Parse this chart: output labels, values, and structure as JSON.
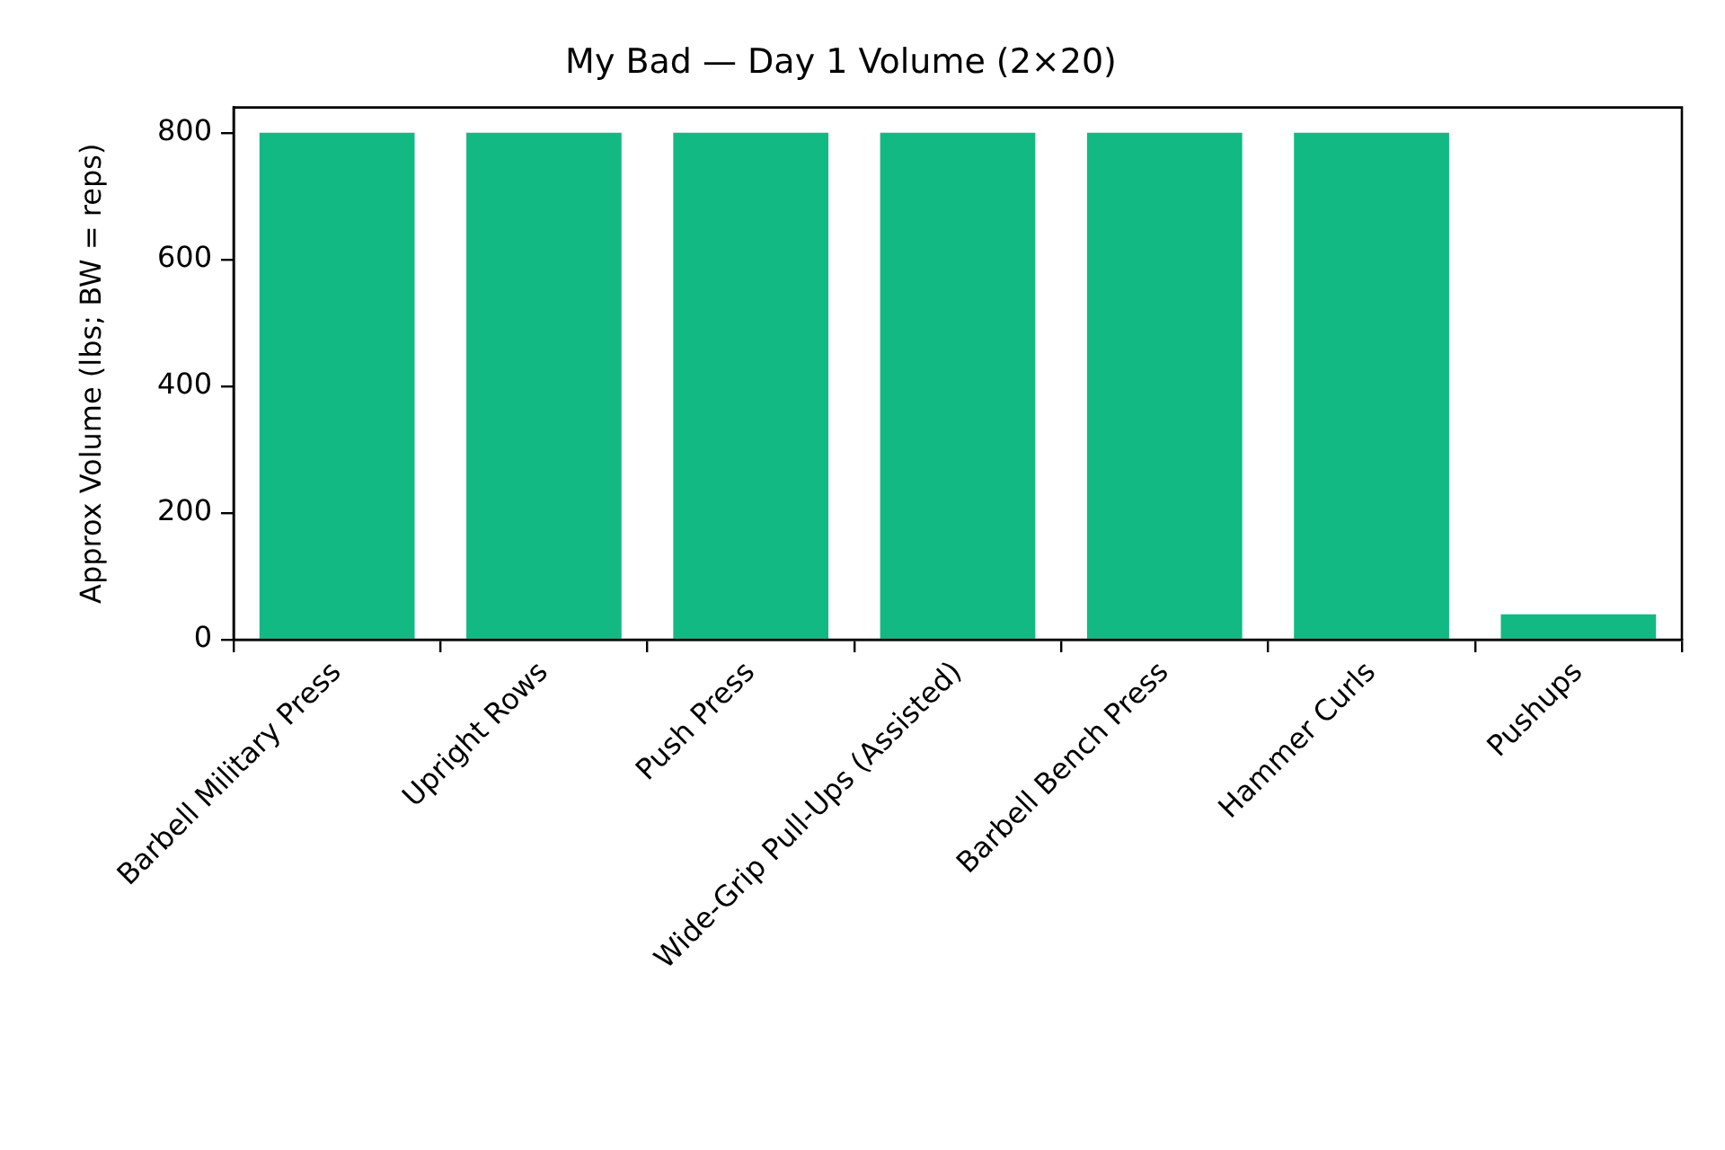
{
  "chart_data": {
    "type": "bar",
    "title": "My Bad — Day 1 Volume (2×20)",
    "ylabel": "Approx Volume (lbs; BW = reps)",
    "categories": [
      "Barbell Military Press",
      "Upright Rows",
      "Push Press",
      "Wide-Grip Pull-Ups (Assisted)",
      "Barbell Bench Press",
      "Hammer Curls",
      "Pushups"
    ],
    "values": [
      800,
      800,
      800,
      800,
      800,
      800,
      40
    ],
    "color": "#12b983",
    "ylim": [
      0,
      840
    ],
    "yticks": [
      0,
      200,
      400,
      600,
      800
    ]
  }
}
